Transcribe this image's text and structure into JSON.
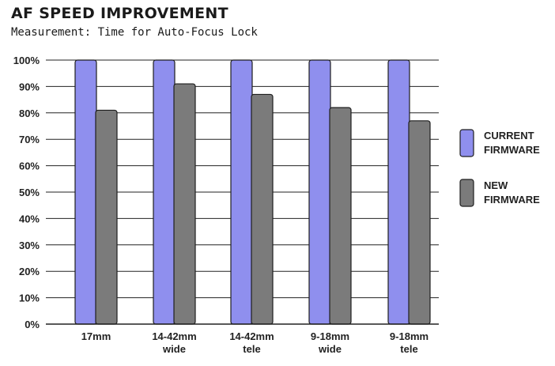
{
  "chart_data": {
    "type": "bar",
    "title": "AF SPEED IMPROVEMENT",
    "subtitle": "Measurement: Time for Auto-Focus Lock",
    "categories": [
      [
        "17mm"
      ],
      [
        "14-42mm",
        "wide"
      ],
      [
        "14-42mm",
        "tele"
      ],
      [
        "9-18mm",
        "wide"
      ],
      [
        "9-18mm",
        "tele"
      ]
    ],
    "series": [
      {
        "name": [
          "CURRENT",
          "FIRMWARE"
        ],
        "values": [
          100,
          100,
          100,
          100,
          100
        ],
        "color": "#8f8fee"
      },
      {
        "name": [
          "NEW",
          "FIRMWARE"
        ],
        "values": [
          81,
          91,
          87,
          82,
          77
        ],
        "color": "#7b7b7b"
      }
    ],
    "yticks": [
      "100%",
      "90%",
      "80%",
      "70%",
      "60%",
      "50%",
      "40%",
      "30%",
      "20%",
      "10%",
      "0%"
    ],
    "ylim": [
      0,
      100
    ],
    "grid": true,
    "legend_position": "right"
  }
}
